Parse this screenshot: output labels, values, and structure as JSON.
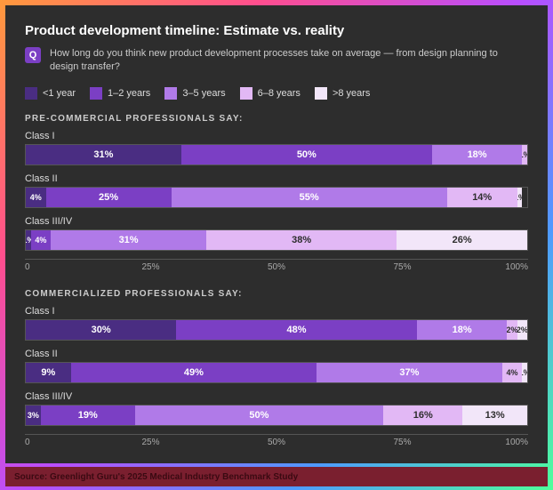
{
  "title": "Product development timeline: Estimate vs. reality",
  "question": {
    "badge": "Q",
    "text": "How long do you think new product development processes take on average — from design planning to design transfer?"
  },
  "legend": [
    {
      "label": "<1 year",
      "color": "#4a2d82"
    },
    {
      "label": "1–2 years",
      "color": "#7b3fc4"
    },
    {
      "label": "3–5 years",
      "color": "#b07ae8"
    },
    {
      "label": "6–8 years",
      "color": "#e2b8f5"
    },
    {
      "label": ">8 years",
      "color": "#f2e6f9"
    }
  ],
  "colors": {
    "background": "#2d2d2d",
    "panel_border": "#555",
    "text": "#eee",
    "muted": "#aaa",
    "source_bg": "#7a1f2f"
  },
  "sections": [
    {
      "label": "PRE-COMMERCIAL PROFESSIONALS SAY:",
      "rows": [
        {
          "name": "Class I",
          "values": [
            {
              "v": 31,
              "t": "31%"
            },
            {
              "v": 50,
              "t": "50%"
            },
            {
              "v": 18,
              "t": "18%"
            },
            {
              "v": 1,
              "t": "1%"
            }
          ]
        },
        {
          "name": "Class II",
          "values": [
            {
              "v": 4,
              "t": "4%"
            },
            {
              "v": 25,
              "t": "25%"
            },
            {
              "v": 55,
              "t": "55%"
            },
            {
              "v": 14,
              "t": "14%"
            },
            {
              "v": 1,
              "t": "1%"
            }
          ]
        },
        {
          "name": "Class III/IV",
          "values": [
            {
              "v": 1,
              "t": "1%"
            },
            {
              "v": 4,
              "t": "4%"
            },
            {
              "v": 31,
              "t": "31%"
            },
            {
              "v": 38,
              "t": "38%"
            },
            {
              "v": 26,
              "t": "26%"
            }
          ]
        }
      ]
    },
    {
      "label": "COMMERCIALIZED PROFESSIONALS SAY:",
      "rows": [
        {
          "name": "Class I",
          "values": [
            {
              "v": 30,
              "t": "30%"
            },
            {
              "v": 48,
              "t": "48%"
            },
            {
              "v": 18,
              "t": "18%"
            },
            {
              "v": 2,
              "t": "2%"
            },
            {
              "v": 2,
              "t": "2%"
            }
          ]
        },
        {
          "name": "Class II",
          "values": [
            {
              "v": 9,
              "t": "9%"
            },
            {
              "v": 49,
              "t": "49%"
            },
            {
              "v": 37,
              "t": "37%"
            },
            {
              "v": 4,
              "t": "4%"
            },
            {
              "v": 1,
              "t": "1%"
            }
          ]
        },
        {
          "name": "Class III/IV",
          "values": [
            {
              "v": 3,
              "t": "3%"
            },
            {
              "v": 19,
              "t": "19%"
            },
            {
              "v": 50,
              "t": "50%"
            },
            {
              "v": 16,
              "t": "16%"
            },
            {
              "v": 13,
              "t": "13%"
            }
          ]
        }
      ]
    }
  ],
  "axis": {
    "ticks": [
      "0",
      "25%",
      "50%",
      "75%",
      "100%"
    ]
  },
  "source": "Source: Greenlight Guru's 2025 Medical Industry Benchmark Study"
}
